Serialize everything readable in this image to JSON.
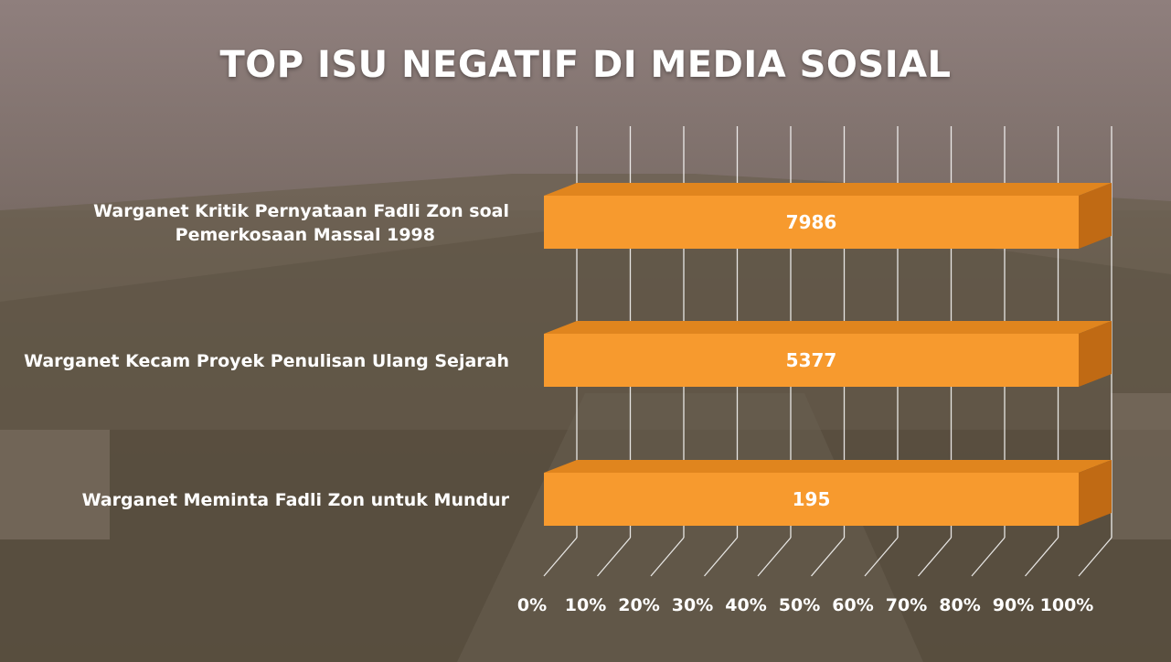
{
  "title": "TOP ISU NEGATIF DI MEDIA SOSIAL",
  "colors": {
    "bar_front": "#F79A2E",
    "bar_top": "#E0851E",
    "bar_side": "#C06A14",
    "text": "#FFFFFF"
  },
  "chart_data": {
    "type": "bar",
    "orientation": "horizontal-3d",
    "stacking": "100-percent",
    "categories": [
      [
        "Warganet Kritik Pernyataan Fadli Zon soal",
        "Pemerkosaan Massal 1998"
      ],
      [
        "Warganet Kecam Proyek Penulisan Ulang Sejarah"
      ],
      [
        "Warganet Meminta Fadli Zon untuk Mundur"
      ]
    ],
    "values": [
      7986,
      5377,
      195
    ],
    "value_labels": [
      "7986",
      "5377",
      "195"
    ],
    "x_ticks": [
      "0%",
      "10%",
      "20%",
      "30%",
      "40%",
      "50%",
      "60%",
      "70%",
      "80%",
      "90%",
      "100%"
    ],
    "xlim": [
      0,
      100
    ],
    "grid": true,
    "legend": "none"
  }
}
